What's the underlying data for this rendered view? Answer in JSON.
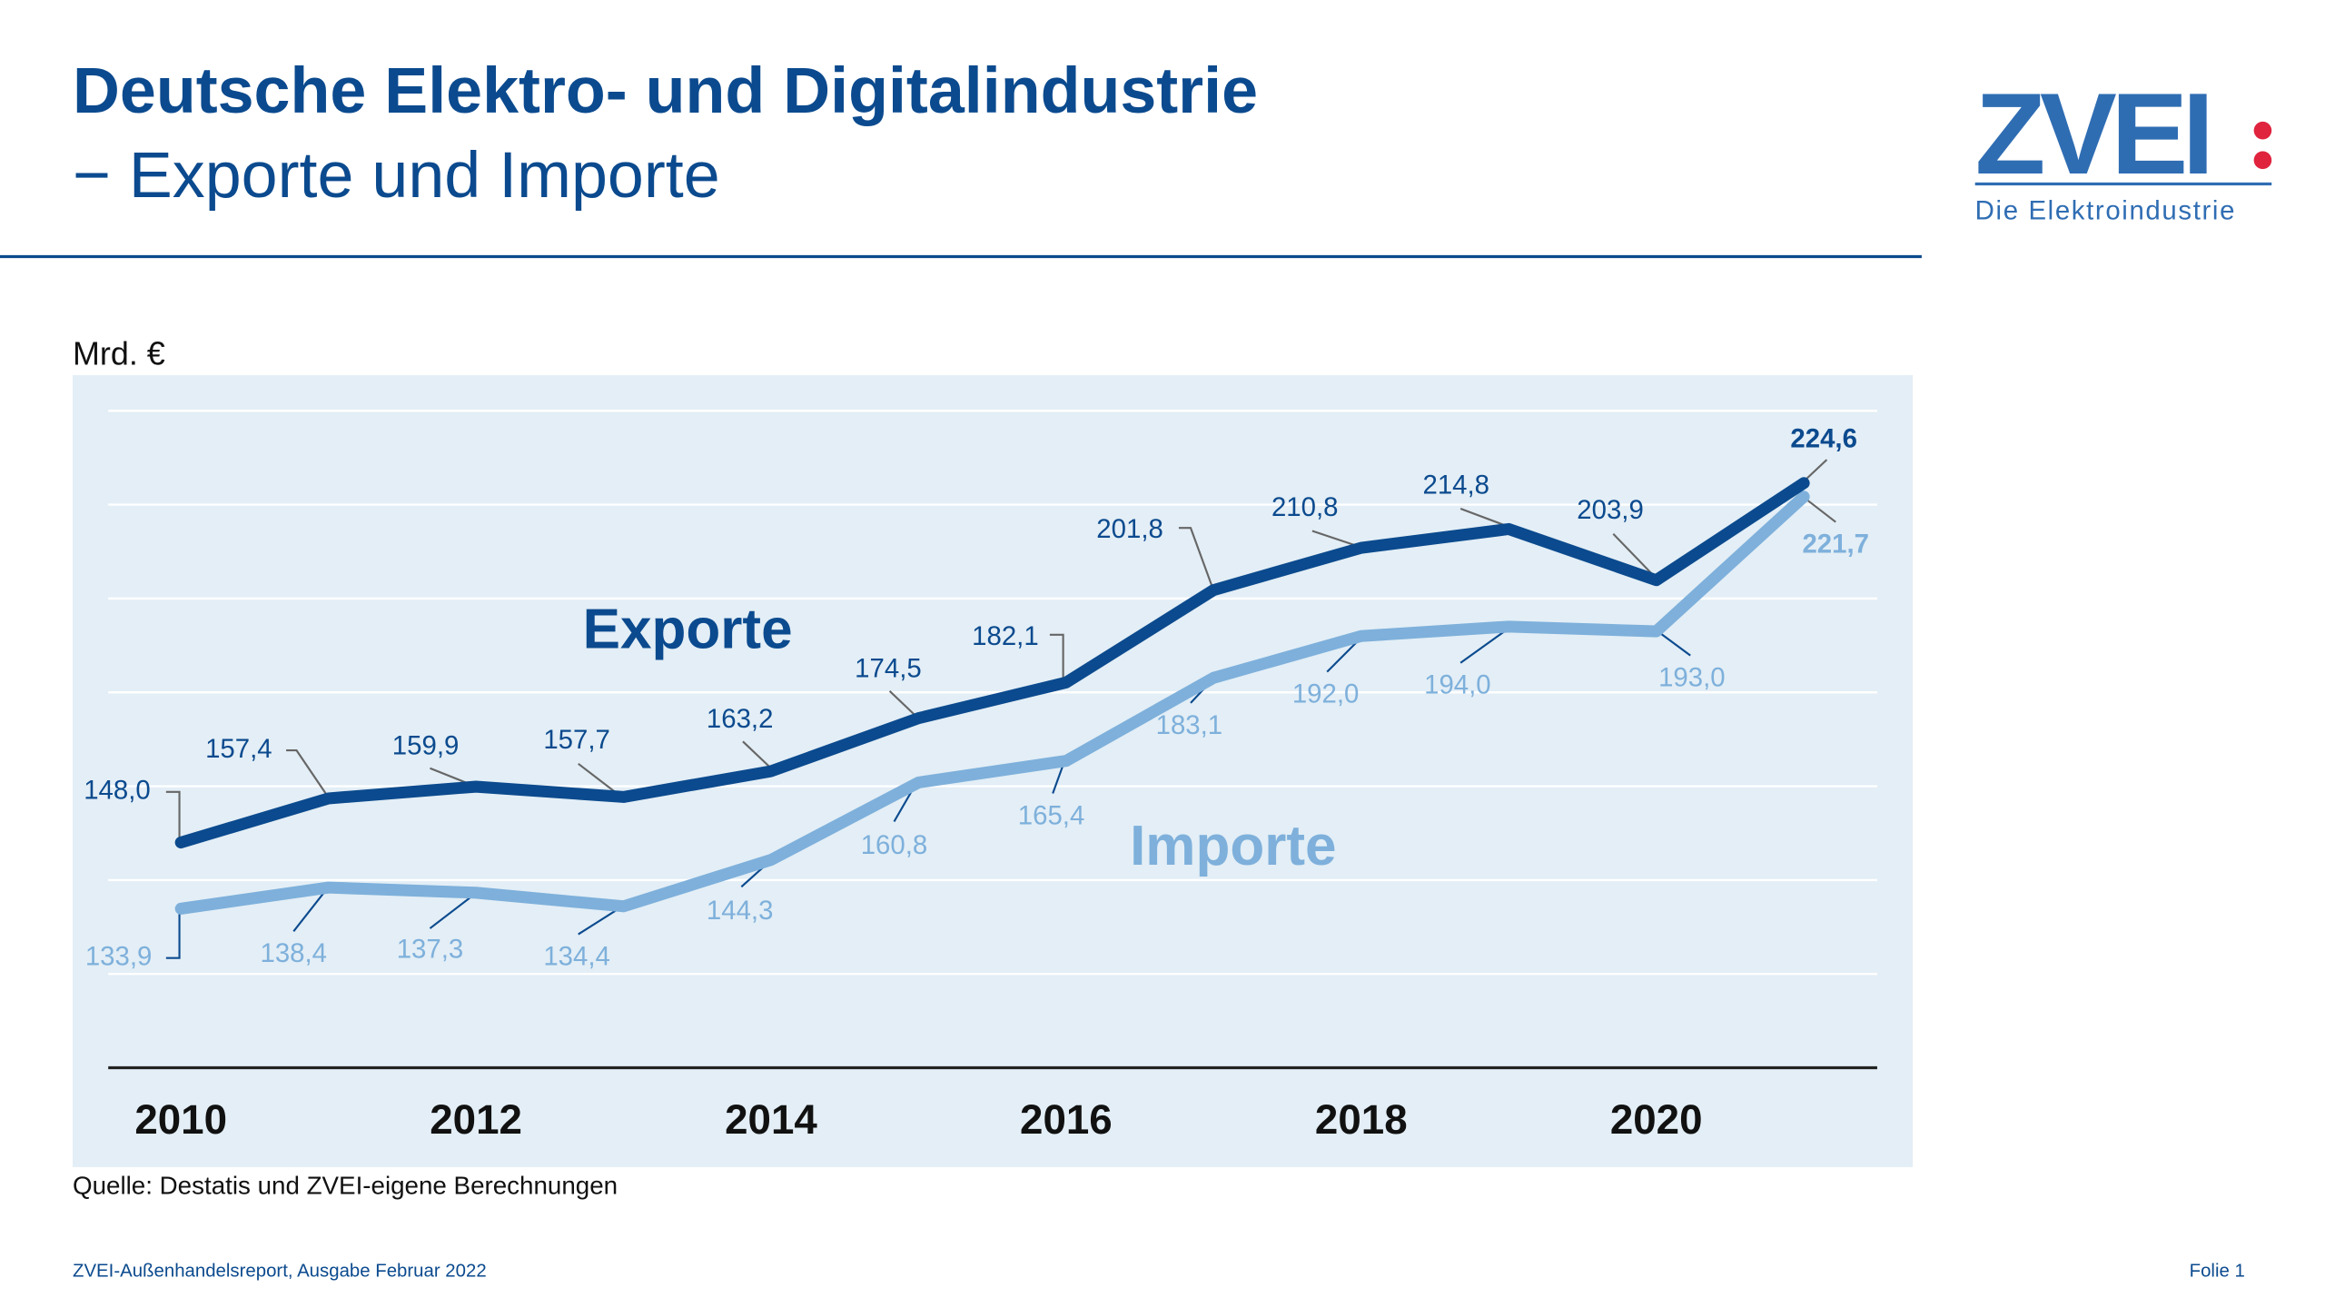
{
  "header": {
    "title": "Deutsche Elektro- und Digitalindustrie",
    "subtitle": "− Exporte und Importe"
  },
  "logo": {
    "text": "ZVEI:",
    "tagline": "Die Elektroindustrie"
  },
  "footer": {
    "source": "Quelle: Destatis und ZVEI-eigene Berechnungen",
    "report": "ZVEI-Außenhandelsreport, Ausgabe Februar 2022",
    "slide": "Folie 1"
  },
  "chart_data": {
    "type": "line",
    "ylabel": "Mrd. €",
    "x": [
      2010,
      2011,
      2012,
      2013,
      2014,
      2015,
      2016,
      2017,
      2018,
      2019,
      2020,
      2021
    ],
    "xticks": [
      "2010",
      "2012",
      "2014",
      "2016",
      "2018",
      "2020"
    ],
    "ylim": [
      100,
      240
    ],
    "grid": true,
    "colors": {
      "exports": "#0b4a8e",
      "imports": "#7eb0db"
    },
    "series": [
      {
        "name": "Exporte",
        "values": [
          148.0,
          157.4,
          159.9,
          157.7,
          163.2,
          174.5,
          182.1,
          201.8,
          210.8,
          214.8,
          203.9,
          224.6
        ],
        "labels": [
          "148,0",
          "157,4",
          "159,9",
          "157,7",
          "163,2",
          "174,5",
          "182,1",
          "201,8",
          "210,8",
          "214,8",
          "203,9",
          "224,6"
        ]
      },
      {
        "name": "Importe",
        "values": [
          133.9,
          138.4,
          137.3,
          134.4,
          144.3,
          160.8,
          165.4,
          183.1,
          192.0,
          194.0,
          193.0,
          221.7
        ],
        "labels": [
          "133,9",
          "138,4",
          "137,3",
          "134,4",
          "144,3",
          "160,8",
          "165,4",
          "183,1",
          "192,0",
          "194,0",
          "193,0",
          "221,7"
        ]
      }
    ]
  }
}
